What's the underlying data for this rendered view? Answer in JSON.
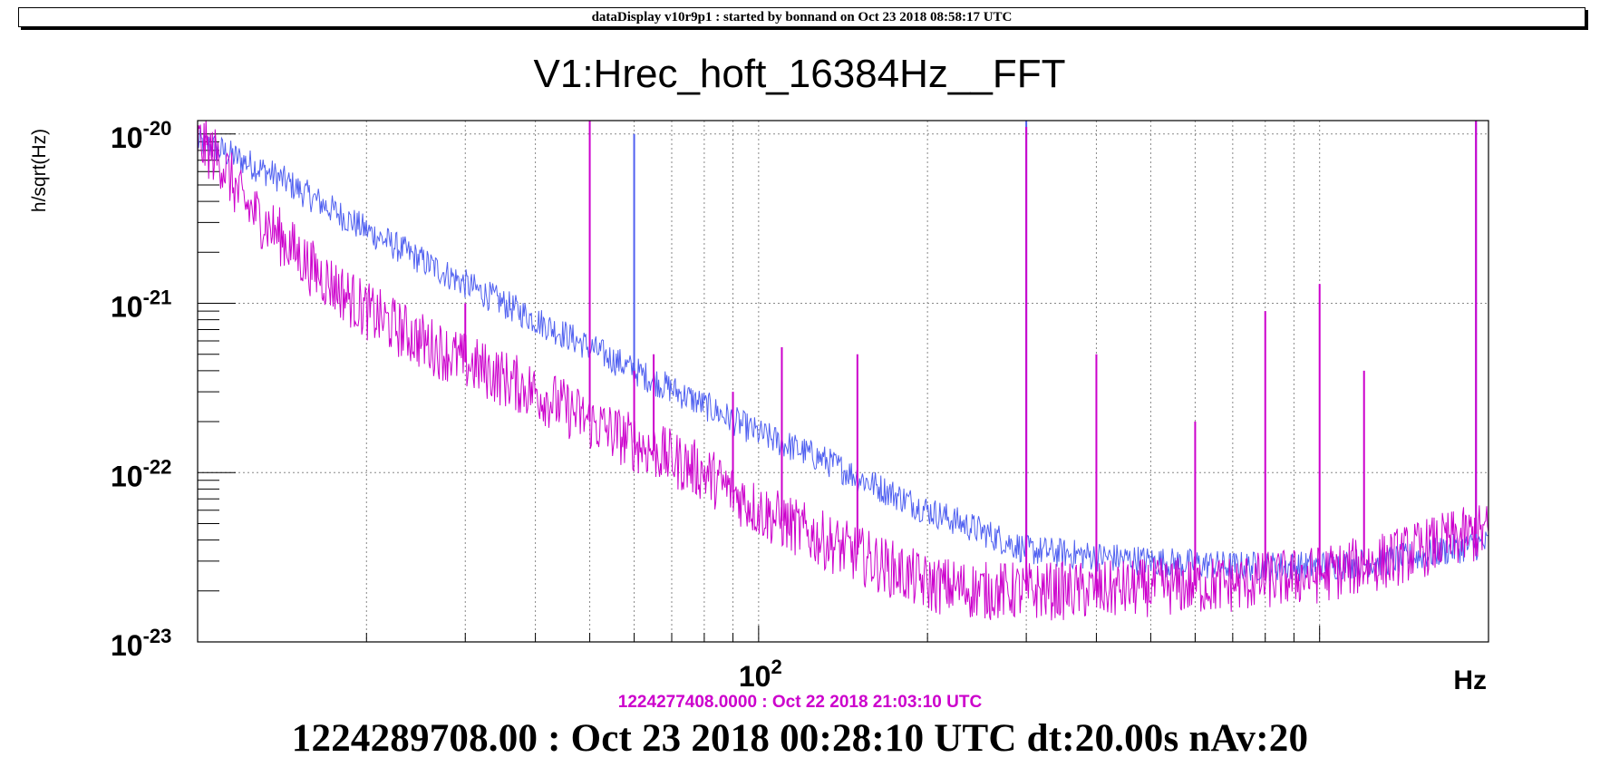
{
  "header": {
    "banner": "dataDisplay v10r9p1 : started by bonnand on Oct 23 2018 08:58:17 UTC"
  },
  "footer": {
    "reference_time": "1224277408.0000 : Oct 22 2018 21:03:10 UTC",
    "current_time": "1224289708.00 : Oct 23 2018 00:28:10 UTC dt:20.00s nAv:20"
  },
  "colors": {
    "current": "#5060f0",
    "reference": "#cc00cc",
    "axis": "#000000",
    "grid": "#888888"
  },
  "chart_data": {
    "type": "line",
    "title": "V1:Hrec_hoft_16384Hz__FFT",
    "xlabel": "Hz",
    "ylabel": "h/sqrt(Hz)",
    "xscale": "log",
    "yscale": "log",
    "xlim": [
      10,
      2000
    ],
    "ylim": [
      1e-23,
      1.2e-20
    ],
    "x_tick_label": {
      "base": "10",
      "exp": "2",
      "value": 100
    },
    "y_tick_labels": [
      {
        "base": "10",
        "exp": "-20",
        "value": 1e-20
      },
      {
        "base": "10",
        "exp": "-21",
        "value": 1e-21
      },
      {
        "base": "10",
        "exp": "-22",
        "value": 1e-22
      },
      {
        "base": "10",
        "exp": "-23",
        "value": 1e-23
      }
    ],
    "grid": true,
    "series": [
      {
        "role": "current",
        "x": [
          10,
          11,
          12,
          14,
          16,
          20,
          25,
          30,
          40,
          50,
          60,
          80,
          100,
          130,
          160,
          200,
          250,
          300,
          400,
          500,
          700,
          1000,
          1300,
          1500,
          1700,
          2000
        ],
        "y": [
          9e-21,
          8e-21,
          7e-21,
          5.5e-21,
          4.2e-21,
          2.7e-21,
          1.8e-21,
          1.3e-21,
          8e-22,
          5.5e-22,
          4e-22,
          2.5e-22,
          1.7e-22,
          1.2e-22,
          8.5e-23,
          6e-23,
          4.5e-23,
          3.5e-23,
          3.2e-23,
          3e-23,
          2.8e-23,
          2.8e-23,
          3e-23,
          3.2e-23,
          3.5e-23,
          3.8e-23
        ],
        "peaks": [
          [
            60,
            1e-20
          ],
          [
            300,
            1.2e-20
          ],
          [
            1900,
            1.2e-20
          ]
        ]
      },
      {
        "role": "reference",
        "x": [
          10,
          11,
          12,
          14,
          16,
          20,
          25,
          30,
          40,
          50,
          60,
          80,
          100,
          130,
          160,
          200,
          250,
          300,
          400,
          500,
          700,
          1000,
          1300,
          1500,
          1700,
          2000
        ],
        "y": [
          9e-21,
          7e-21,
          4e-21,
          2.5e-21,
          1.6e-21,
          9e-22,
          6e-22,
          4.5e-22,
          3e-22,
          2e-22,
          1.5e-22,
          1e-22,
          6e-23,
          4e-23,
          3e-23,
          2.2e-23,
          2e-23,
          2e-23,
          2e-23,
          2.1e-23,
          2.2e-23,
          2.5e-23,
          3e-23,
          3.5e-23,
          4e-23,
          4.5e-23
        ],
        "peaks": [
          [
            30,
            1e-21
          ],
          [
            50,
            1.2e-20
          ],
          [
            60,
            4e-22
          ],
          [
            65,
            5e-22
          ],
          [
            90,
            3e-22
          ],
          [
            110,
            5.5e-22
          ],
          [
            150,
            5e-22
          ],
          [
            300,
            1.1e-20
          ],
          [
            400,
            5e-22
          ],
          [
            600,
            2e-22
          ],
          [
            800,
            9e-22
          ],
          [
            1000,
            1.3e-21
          ],
          [
            1200,
            4e-22
          ],
          [
            1900,
            1.2e-20
          ]
        ]
      }
    ]
  }
}
